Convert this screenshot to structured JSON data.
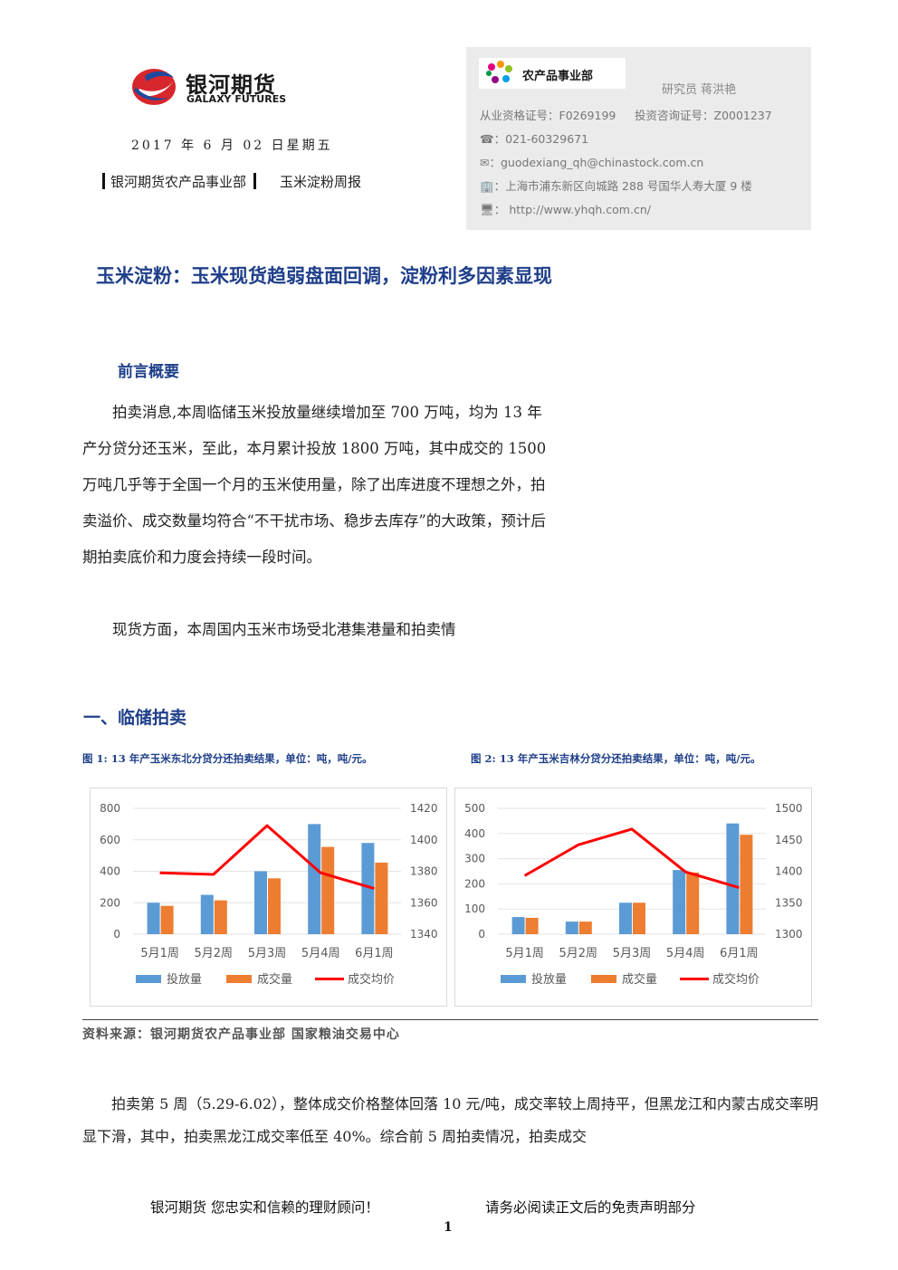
{
  "header": {
    "logo_cn": "银河期货",
    "logo_en": "GALAXY FUTURES",
    "date": "2017 年 6 月 02 日星期五",
    "dept": "银河期货农产品事业部",
    "report_name": "玉米淀粉周报",
    "badge": "农产品事业部",
    "researcher": "研究员   蒋洪艳",
    "license": "从业资格证号：F0269199",
    "invest_license": "投资咨询证号：Z0001237",
    "phone": "☎：021-60329671",
    "email": "✉：guodexiang_qh@chinastock.com.cn",
    "address": "🏢：上海市浦东新区向城路 288 号国华人寿大厦 9 楼",
    "website": "🖥：  http://www.yhqh.com.cn/"
  },
  "main_title": "玉米淀粉：玉米现货趋弱盘面回调，淀粉利多因素显现",
  "section_overview": "前言概要",
  "overview_paragraphs": [
    "　　拍卖消息,本周临储玉米投放量继续增加至 700 万吨，均为 13 年产分贷分还玉米，至此，本月累计投放 1800 万吨，其中成交的 1500 万吨几乎等于全国一个月的玉米使用量，除了出库进度不理想之外，拍卖溢价、成交数量均符合“不干扰市场、稳步去库存”的大政策，预计后期拍卖底价和力度会持续一段时间。",
    "　　现货方面，本周国内玉米市场受北港集港量和拍卖情"
  ],
  "section1": "一、临储拍卖",
  "fig1_title": "图 1: 13 年产玉米东北分贷分还拍卖结果，单位：吨，吨/元。",
  "fig2_title": "图 2: 13 年产玉米吉林分贷分还拍卖结果，单位：吨，吨/元。",
  "chart_data": [
    {
      "type": "bar",
      "categories": [
        "5月1周",
        "5月2周",
        "5月3周",
        "5月4周",
        "6月1周"
      ],
      "series": [
        {
          "name": "投放量",
          "kind": "bar",
          "axis": "left",
          "color": "#5b9bd5",
          "values": [
            200,
            250,
            400,
            700,
            580
          ]
        },
        {
          "name": "成交量",
          "kind": "bar",
          "axis": "left",
          "color": "#ed7d31",
          "values": [
            180,
            215,
            355,
            555,
            455
          ]
        },
        {
          "name": "成交均价",
          "kind": "line",
          "axis": "right",
          "color": "#ff0000",
          "values": [
            1379,
            1378,
            1409,
            1379,
            1369
          ]
        }
      ],
      "ylim_left": [
        0,
        800
      ],
      "yticks_left": [
        "800",
        "600",
        "400",
        "200",
        "0"
      ],
      "ylim_right": [
        1340,
        1420
      ],
      "yticks_right": [
        "1420",
        "1400",
        "1380",
        "1360",
        "1340"
      ],
      "legend": "bottom"
    },
    {
      "type": "bar",
      "categories": [
        "5月1周",
        "5月2周",
        "5月3周",
        "5月4周",
        "6月1周"
      ],
      "series": [
        {
          "name": "投放量",
          "kind": "bar",
          "axis": "left",
          "color": "#5b9bd5",
          "values": [
            68,
            50,
            125,
            255,
            440
          ]
        },
        {
          "name": "成交量",
          "kind": "bar",
          "axis": "left",
          "color": "#ed7d31",
          "values": [
            65,
            50,
            125,
            245,
            395
          ]
        },
        {
          "name": "成交均价",
          "kind": "line",
          "axis": "right",
          "color": "#ff0000",
          "values": [
            1393,
            1442,
            1467,
            1399,
            1374
          ]
        }
      ],
      "ylim_left": [
        0,
        500
      ],
      "yticks_left": [
        "500",
        "400",
        "300",
        "200",
        "100",
        "0"
      ],
      "ylim_right": [
        1300,
        1500
      ],
      "yticks_right": [
        "1500",
        "1450",
        "1400",
        "1350",
        "1300"
      ],
      "legend": "bottom"
    }
  ],
  "source": "资料来源：银河期货农产品事业部  国家粮油交易中心",
  "body_paragraph": "　　拍卖第 5 周（5.29-6.02），整体成交价格整体回落 10 元/吨，成交率较上周持平，但黑龙江和内蒙古成交率明显下滑，其中，拍卖黑龙江成交率低至 40%。综合前 5 周拍卖情况，拍卖成交",
  "footer": {
    "left": "银河期货  您忠实和信赖的理财顾问！",
    "right": "请务必阅读正文后的免责声明部分",
    "page": "1"
  }
}
